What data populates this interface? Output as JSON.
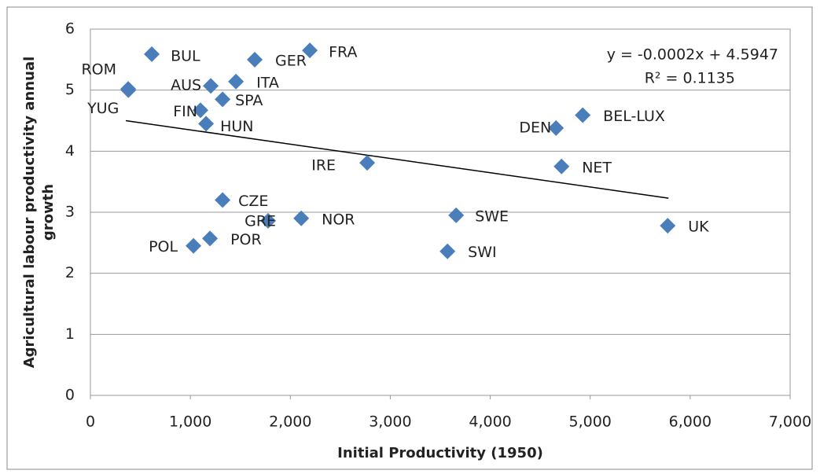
{
  "chart_data": {
    "type": "scatter",
    "x_label": "Initial Productivity (1950)",
    "y_label": [
      "Agricultural labour productivity annual",
      "growth"
    ],
    "labels": [
      "ROM",
      "YUG",
      "BUL",
      "AUS",
      "GER",
      "ITA",
      "FRA",
      "SPA",
      "FIN",
      "HUN",
      "DEN",
      "BEL-LUX",
      "IRE",
      "NET",
      "CZE",
      "GRE",
      "NOR",
      "SWE",
      "UK",
      "POL",
      "POR",
      "SWI"
    ],
    "x": [
      378,
      380,
      614,
      1204,
      1644,
      1456,
      2195,
      1322,
      1101,
      1157,
      4658,
      4925,
      2769,
      4713,
      1322,
      1778,
      2109,
      3659,
      5775,
      1031,
      1196,
      3572
    ],
    "y": [
      5.02,
      5.0,
      5.59,
      5.07,
      5.5,
      5.14,
      5.65,
      4.85,
      4.67,
      4.45,
      4.38,
      4.59,
      3.81,
      3.75,
      3.2,
      2.86,
      2.9,
      2.95,
      2.78,
      2.45,
      2.57,
      2.36
    ],
    "color": "#4a7ebb",
    "trendline": {
      "x": [
        354,
        5783
      ],
      "y": [
        4.5,
        3.23
      ],
      "color": "#000000"
    },
    "annotations": [
      "y = -0.0002x + 4.5947",
      "R² = 0.1135"
    ],
    "xlim": [
      0,
      7000
    ],
    "xticks": [
      0,
      {
        "value": 1000,
        "label": "1,000"
      },
      {
        "value": 2000,
        "label": "2,000"
      },
      {
        "value": 3000,
        "label": "3,000"
      },
      {
        "value": 4000,
        "label": "4,000"
      },
      {
        "value": 5000,
        "label": "5,000"
      },
      {
        "value": 6000,
        "label": "6,000"
      },
      {
        "value": 7000,
        "label": "7,000"
      }
    ],
    "ylim": [
      0,
      6
    ],
    "yticks": [
      0,
      1,
      2,
      3,
      4,
      5,
      6
    ],
    "grid": true
  }
}
